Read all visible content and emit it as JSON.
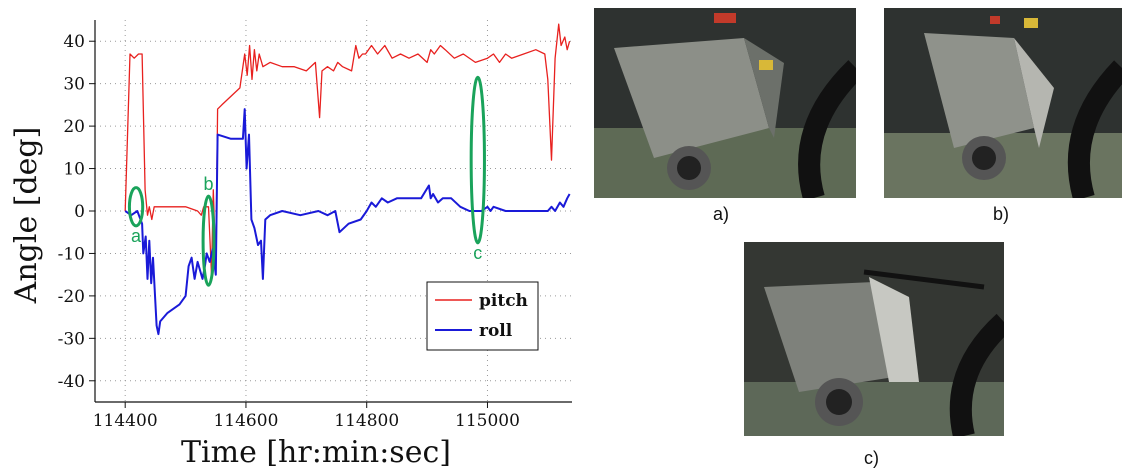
{
  "chart_data": {
    "type": "line",
    "xlabel": "Time [hr:min:sec]",
    "ylabel": "Angle [deg]",
    "xlim": [
      114350,
      115140
    ],
    "ylim": [
      -45,
      45
    ],
    "xticks": [
      114400,
      114600,
      114800,
      115000
    ],
    "yticks": [
      40,
      30,
      20,
      10,
      0,
      -10,
      -20,
      -30,
      -40
    ],
    "grid": true,
    "legend_position": "bottom-right",
    "colors": {
      "pitch": "#e8211f",
      "roll": "#1a1ad8",
      "markers": "#1aa35b"
    },
    "series": [
      {
        "name": "pitch",
        "points": [
          [
            114400,
            0
          ],
          [
            114408,
            37
          ],
          [
            114415,
            36
          ],
          [
            114422,
            37
          ],
          [
            114428,
            37
          ],
          [
            114433,
            5
          ],
          [
            114437,
            -1
          ],
          [
            114440,
            1
          ],
          [
            114444,
            -2
          ],
          [
            114448,
            1
          ],
          [
            114470,
            1
          ],
          [
            114500,
            1
          ],
          [
            114520,
            0
          ],
          [
            114526,
            -1
          ],
          [
            114530,
            1
          ],
          [
            114538,
            1
          ],
          [
            114543,
            -15
          ],
          [
            114546,
            5
          ],
          [
            114550,
            -13
          ],
          [
            114553,
            24
          ],
          [
            114560,
            25
          ],
          [
            114590,
            29
          ],
          [
            114598,
            37
          ],
          [
            114602,
            32
          ],
          [
            114606,
            39
          ],
          [
            114610,
            31
          ],
          [
            114614,
            38
          ],
          [
            114618,
            33
          ],
          [
            114622,
            37
          ],
          [
            114628,
            34
          ],
          [
            114640,
            35
          ],
          [
            114660,
            34
          ],
          [
            114680,
            34
          ],
          [
            114700,
            33
          ],
          [
            114715,
            35
          ],
          [
            114722,
            22
          ],
          [
            114726,
            33
          ],
          [
            114735,
            34
          ],
          [
            114745,
            33
          ],
          [
            114752,
            35
          ],
          [
            114760,
            34
          ],
          [
            114775,
            33
          ],
          [
            114782,
            39
          ],
          [
            114787,
            36
          ],
          [
            114793,
            37
          ],
          [
            114798,
            37
          ],
          [
            114808,
            39
          ],
          [
            114818,
            37
          ],
          [
            114830,
            39
          ],
          [
            114842,
            36
          ],
          [
            114856,
            37
          ],
          [
            114870,
            36
          ],
          [
            114885,
            37
          ],
          [
            114900,
            35
          ],
          [
            114906,
            38
          ],
          [
            114912,
            37
          ],
          [
            114922,
            39
          ],
          [
            114930,
            38
          ],
          [
            114945,
            36
          ],
          [
            114960,
            37
          ],
          [
            114980,
            35
          ],
          [
            115000,
            36
          ],
          [
            115010,
            37
          ],
          [
            115020,
            35
          ],
          [
            115030,
            37
          ],
          [
            115040,
            36
          ],
          [
            115060,
            37
          ],
          [
            115080,
            38
          ],
          [
            115095,
            37
          ],
          [
            115100,
            31
          ],
          [
            115106,
            12
          ],
          [
            115112,
            36
          ],
          [
            115118,
            44
          ],
          [
            115122,
            39
          ],
          [
            115128,
            41
          ],
          [
            115132,
            38
          ],
          [
            115136,
            40
          ]
        ]
      },
      {
        "name": "roll",
        "points": [
          [
            114400,
            0
          ],
          [
            114410,
            -1
          ],
          [
            114420,
            0
          ],
          [
            114428,
            -3
          ],
          [
            114430,
            -10
          ],
          [
            114434,
            -6
          ],
          [
            114437,
            -16
          ],
          [
            114440,
            -7
          ],
          [
            114443,
            -17
          ],
          [
            114446,
            -11
          ],
          [
            114452,
            -27
          ],
          [
            114455,
            -29
          ],
          [
            114458,
            -26
          ],
          [
            114470,
            -24
          ],
          [
            114490,
            -22
          ],
          [
            114500,
            -20
          ],
          [
            114505,
            -13
          ],
          [
            114510,
            -11
          ],
          [
            114515,
            -16
          ],
          [
            114520,
            -12
          ],
          [
            114528,
            -16
          ],
          [
            114532,
            -13
          ],
          [
            114535,
            -10
          ],
          [
            114540,
            -12
          ],
          [
            114545,
            -9
          ],
          [
            114550,
            -15
          ],
          [
            114553,
            18
          ],
          [
            114575,
            17
          ],
          [
            114595,
            17
          ],
          [
            114598,
            24
          ],
          [
            114601,
            10
          ],
          [
            114605,
            18
          ],
          [
            114609,
            -2
          ],
          [
            114614,
            -4
          ],
          [
            114620,
            -8
          ],
          [
            114625,
            -7
          ],
          [
            114628,
            -16
          ],
          [
            114632,
            -2
          ],
          [
            114640,
            -1
          ],
          [
            114660,
            0
          ],
          [
            114690,
            -1
          ],
          [
            114720,
            0
          ],
          [
            114735,
            -1
          ],
          [
            114748,
            0
          ],
          [
            114755,
            -5
          ],
          [
            114770,
            -3
          ],
          [
            114790,
            -2
          ],
          [
            114800,
            0
          ],
          [
            114808,
            2
          ],
          [
            114815,
            1
          ],
          [
            114825,
            3
          ],
          [
            114835,
            2
          ],
          [
            114850,
            3
          ],
          [
            114870,
            3
          ],
          [
            114890,
            3
          ],
          [
            114903,
            6
          ],
          [
            114906,
            3
          ],
          [
            114910,
            4
          ],
          [
            114918,
            2
          ],
          [
            114926,
            3
          ],
          [
            114940,
            3
          ],
          [
            114955,
            1
          ],
          [
            114970,
            0
          ],
          [
            114990,
            0
          ],
          [
            115000,
            1
          ],
          [
            115005,
            0
          ],
          [
            115010,
            1
          ],
          [
            115030,
            0
          ],
          [
            115070,
            0
          ],
          [
            115100,
            0
          ],
          [
            115106,
            1
          ],
          [
            115112,
            0
          ],
          [
            115120,
            2
          ],
          [
            115126,
            1
          ],
          [
            115132,
            3
          ],
          [
            115136,
            4
          ]
        ]
      }
    ],
    "markers": [
      {
        "label": "a",
        "x": 114418,
        "y": 1,
        "half_width_x": 11,
        "half_height_y": 4.5
      },
      {
        "label": "b",
        "x": 114538,
        "y": -7,
        "half_width_x": 9,
        "half_height_y": 10.5
      },
      {
        "label": "c",
        "x": 114984,
        "y": 12,
        "half_width_x": 11,
        "half_height_y": 19.5
      }
    ]
  },
  "photos": [
    {
      "caption": "a)"
    },
    {
      "caption": "b)"
    },
    {
      "caption": "c)"
    }
  ]
}
